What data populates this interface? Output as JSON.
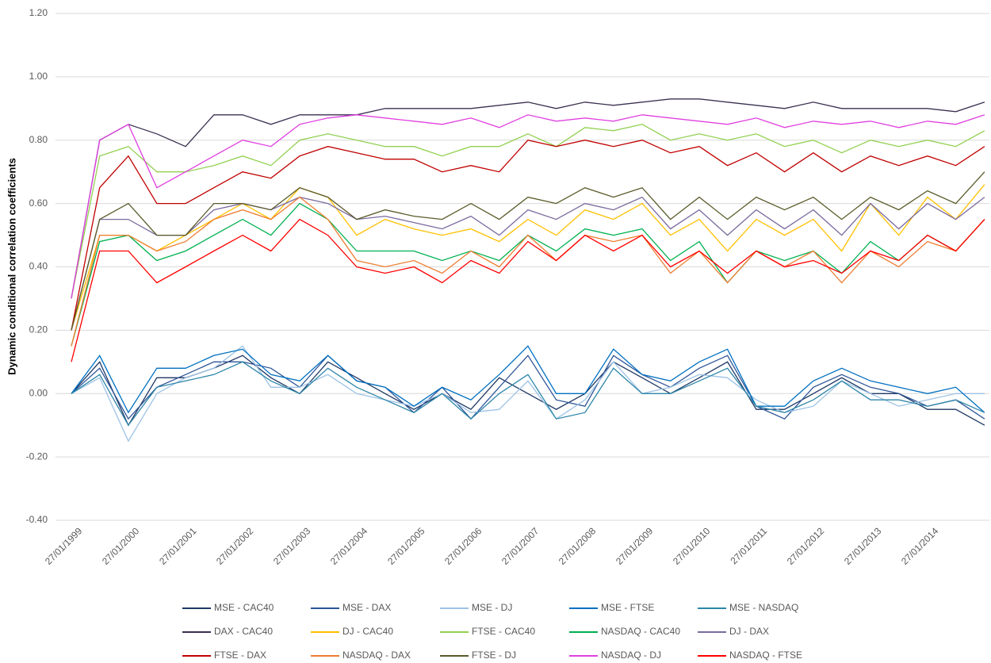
{
  "chart_data": {
    "type": "line",
    "y_label": "Dynamic conditional correlation coefficients",
    "x": [
      "27/01/1999",
      "27/07/1999",
      "27/01/2000",
      "27/07/2000",
      "27/01/2001",
      "27/07/2001",
      "27/01/2002",
      "27/07/2002",
      "27/01/2003",
      "27/07/2003",
      "27/01/2004",
      "27/07/2004",
      "27/01/2005",
      "27/07/2005",
      "27/01/2006",
      "27/07/2006",
      "27/01/2007",
      "27/07/2007",
      "27/01/2008",
      "27/07/2008",
      "27/01/2009",
      "27/07/2009",
      "27/01/2010",
      "27/07/2010",
      "27/01/2011",
      "27/07/2011",
      "27/01/2012",
      "27/07/2012",
      "27/01/2013",
      "27/07/2013",
      "27/01/2014",
      "27/07/2014",
      "27/01/2015"
    ],
    "xlim": [
      "27/01/1999",
      "27/02/2015"
    ],
    "xticks": [
      "27/01/1999",
      "27/01/2000",
      "27/01/2001",
      "27/01/2002",
      "27/01/2003",
      "27/01/2004",
      "27/01/2005",
      "27/01/2006",
      "27/01/2007",
      "27/01/2008",
      "27/01/2009",
      "27/01/2010",
      "27/01/2011",
      "27/01/2012",
      "27/01/2013",
      "27/01/2014"
    ],
    "ylim": [
      -0.4,
      1.2
    ],
    "yticks": [
      {
        "value": -0.4,
        "label": "-0.40"
      },
      {
        "value": -0.2,
        "label": "-0.20"
      },
      {
        "value": 0,
        "label": "0.00"
      },
      {
        "value": 0.2,
        "label": "0.20"
      },
      {
        "value": 0.4,
        "label": "0.40"
      },
      {
        "value": 0.6,
        "label": "0.60"
      },
      {
        "value": 0.8,
        "label": "0.80"
      },
      {
        "value": 1,
        "label": "1.00"
      },
      {
        "value": 1.2,
        "label": "1.20"
      }
    ],
    "grid": true,
    "legend": "bottom",
    "series": [
      {
        "name": "MSE - CAC40",
        "color": "#1f3864",
        "values": [
          0.0,
          0.1,
          -0.1,
          0.05,
          0.05,
          0.08,
          0.12,
          0.05,
          0.0,
          0.1,
          0.05,
          0.0,
          -0.05,
          0.0,
          -0.05,
          0.05,
          0.0,
          -0.05,
          0.0,
          0.1,
          0.05,
          0.0,
          0.05,
          0.1,
          -0.05,
          -0.05,
          0.0,
          0.05,
          0.0,
          0.0,
          -0.05,
          -0.05,
          -0.1
        ]
      },
      {
        "name": "MSE - DAX",
        "color": "#2e5597",
        "values": [
          0.0,
          0.08,
          -0.08,
          0.02,
          0.06,
          0.1,
          0.1,
          0.08,
          0.02,
          0.12,
          0.04,
          0.02,
          -0.06,
          0.02,
          -0.08,
          0.02,
          0.12,
          -0.02,
          -0.04,
          0.12,
          0.06,
          0.02,
          0.08,
          0.12,
          -0.04,
          -0.08,
          0.02,
          0.06,
          0.02,
          0.0,
          -0.04,
          -0.02,
          -0.08
        ]
      },
      {
        "name": "MSE - DJ",
        "color": "#9dc3e6",
        "values": [
          0.0,
          0.05,
          -0.15,
          0.0,
          0.05,
          0.08,
          0.15,
          0.02,
          0.02,
          0.06,
          0.0,
          -0.02,
          -0.04,
          0.0,
          -0.06,
          -0.05,
          0.04,
          -0.08,
          -0.02,
          0.1,
          0.0,
          0.02,
          0.06,
          0.05,
          -0.02,
          -0.06,
          -0.04,
          0.04,
          0.0,
          -0.04,
          -0.02,
          0.0,
          0.0
        ]
      },
      {
        "name": "MSE - FTSE",
        "color": "#0070c0",
        "values": [
          0.0,
          0.12,
          -0.06,
          0.08,
          0.08,
          0.12,
          0.14,
          0.06,
          0.04,
          0.12,
          0.04,
          0.02,
          -0.04,
          0.02,
          -0.02,
          0.06,
          0.15,
          0.0,
          0.0,
          0.14,
          0.06,
          0.04,
          0.1,
          0.14,
          -0.04,
          -0.04,
          0.04,
          0.08,
          0.04,
          0.02,
          0.0,
          0.02,
          -0.06
        ]
      },
      {
        "name": "MSE - NASDAQ",
        "color": "#2e86a8",
        "values": [
          0.0,
          0.06,
          -0.1,
          0.02,
          0.04,
          0.06,
          0.1,
          0.04,
          0.0,
          0.08,
          0.02,
          -0.02,
          -0.06,
          0.0,
          -0.08,
          0.0,
          0.06,
          -0.08,
          -0.06,
          0.08,
          0.0,
          0.0,
          0.04,
          0.08,
          -0.04,
          -0.06,
          -0.02,
          0.04,
          -0.02,
          -0.02,
          -0.04,
          -0.02,
          -0.06
        ]
      },
      {
        "name": "DAX - CAC40",
        "color": "#3b3050",
        "values": [
          0.3,
          0.8,
          0.85,
          0.82,
          0.78,
          0.88,
          0.88,
          0.85,
          0.88,
          0.88,
          0.88,
          0.9,
          0.9,
          0.9,
          0.9,
          0.91,
          0.92,
          0.9,
          0.92,
          0.91,
          0.92,
          0.93,
          0.93,
          0.92,
          0.91,
          0.9,
          0.92,
          0.9,
          0.9,
          0.9,
          0.9,
          0.89,
          0.92
        ]
      },
      {
        "name": "DJ - CAC40",
        "color": "#ffc000",
        "values": [
          0.2,
          0.5,
          0.5,
          0.45,
          0.5,
          0.55,
          0.6,
          0.55,
          0.65,
          0.62,
          0.5,
          0.55,
          0.52,
          0.5,
          0.52,
          0.48,
          0.55,
          0.5,
          0.58,
          0.55,
          0.6,
          0.5,
          0.55,
          0.45,
          0.55,
          0.5,
          0.55,
          0.45,
          0.6,
          0.5,
          0.62,
          0.55,
          0.66
        ]
      },
      {
        "name": "FTSE - CAC40",
        "color": "#92d050",
        "values": [
          0.3,
          0.75,
          0.78,
          0.7,
          0.7,
          0.72,
          0.75,
          0.72,
          0.8,
          0.82,
          0.8,
          0.78,
          0.78,
          0.75,
          0.78,
          0.78,
          0.82,
          0.78,
          0.84,
          0.83,
          0.85,
          0.8,
          0.82,
          0.8,
          0.82,
          0.78,
          0.8,
          0.76,
          0.8,
          0.78,
          0.8,
          0.78,
          0.83
        ]
      },
      {
        "name": "NASDAQ - CAC40",
        "color": "#00b050",
        "values": [
          0.15,
          0.48,
          0.5,
          0.42,
          0.45,
          0.5,
          0.55,
          0.5,
          0.6,
          0.55,
          0.45,
          0.45,
          0.45,
          0.42,
          0.45,
          0.42,
          0.5,
          0.45,
          0.52,
          0.5,
          0.52,
          0.42,
          0.48,
          0.35,
          0.45,
          0.42,
          0.45,
          0.38,
          0.48,
          0.42,
          0.5,
          0.45,
          0.55
        ]
      },
      {
        "name": "DJ - DAX",
        "color": "#7a6a9e",
        "values": [
          0.2,
          0.55,
          0.55,
          0.5,
          0.5,
          0.58,
          0.6,
          0.58,
          0.62,
          0.6,
          0.55,
          0.56,
          0.54,
          0.52,
          0.56,
          0.5,
          0.58,
          0.55,
          0.6,
          0.58,
          0.62,
          0.52,
          0.58,
          0.5,
          0.58,
          0.52,
          0.58,
          0.5,
          0.6,
          0.52,
          0.6,
          0.55,
          0.62
        ]
      },
      {
        "name": "FTSE - DAX",
        "color": "#c00000",
        "values": [
          0.2,
          0.65,
          0.75,
          0.6,
          0.6,
          0.65,
          0.7,
          0.68,
          0.75,
          0.78,
          0.76,
          0.74,
          0.74,
          0.7,
          0.72,
          0.7,
          0.8,
          0.78,
          0.8,
          0.78,
          0.8,
          0.76,
          0.78,
          0.72,
          0.76,
          0.7,
          0.76,
          0.7,
          0.75,
          0.72,
          0.75,
          0.72,
          0.78
        ]
      },
      {
        "name": "NASDAQ - DAX",
        "color": "#ed7d31",
        "values": [
          0.15,
          0.5,
          0.5,
          0.45,
          0.48,
          0.55,
          0.58,
          0.55,
          0.62,
          0.55,
          0.42,
          0.4,
          0.42,
          0.38,
          0.45,
          0.4,
          0.5,
          0.42,
          0.5,
          0.48,
          0.5,
          0.38,
          0.45,
          0.35,
          0.45,
          0.4,
          0.45,
          0.35,
          0.45,
          0.4,
          0.48,
          0.45,
          0.55
        ]
      },
      {
        "name": "FTSE - DJ",
        "color": "#5a5a2a",
        "values": [
          0.2,
          0.55,
          0.6,
          0.5,
          0.5,
          0.6,
          0.6,
          0.58,
          0.65,
          0.62,
          0.55,
          0.58,
          0.56,
          0.55,
          0.6,
          0.55,
          0.62,
          0.6,
          0.65,
          0.62,
          0.65,
          0.55,
          0.62,
          0.55,
          0.62,
          0.58,
          0.62,
          0.55,
          0.62,
          0.58,
          0.64,
          0.6,
          0.7
        ]
      },
      {
        "name": "NASDAQ - DJ",
        "color": "#e040e0",
        "values": [
          0.3,
          0.8,
          0.85,
          0.65,
          0.7,
          0.75,
          0.8,
          0.78,
          0.85,
          0.87,
          0.88,
          0.87,
          0.86,
          0.85,
          0.87,
          0.84,
          0.88,
          0.86,
          0.87,
          0.86,
          0.88,
          0.87,
          0.86,
          0.85,
          0.87,
          0.84,
          0.86,
          0.85,
          0.86,
          0.84,
          0.86,
          0.85,
          0.88
        ]
      },
      {
        "name": "NASDAQ - FTSE",
        "color": "#ff0000",
        "values": [
          0.1,
          0.45,
          0.45,
          0.35,
          0.4,
          0.45,
          0.5,
          0.45,
          0.55,
          0.5,
          0.4,
          0.38,
          0.4,
          0.35,
          0.42,
          0.38,
          0.48,
          0.42,
          0.5,
          0.45,
          0.5,
          0.4,
          0.45,
          0.38,
          0.45,
          0.4,
          0.42,
          0.38,
          0.45,
          0.42,
          0.5,
          0.45,
          0.55
        ]
      }
    ]
  }
}
